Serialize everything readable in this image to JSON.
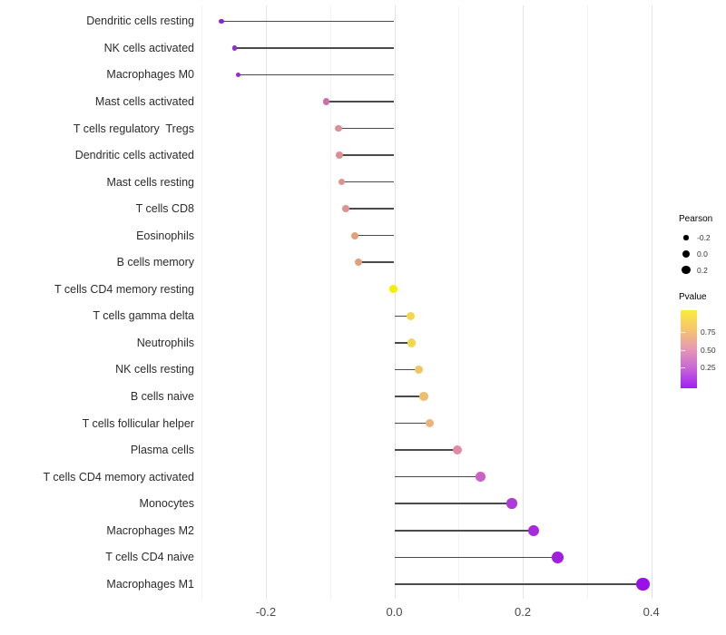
{
  "chart_data": {
    "type": "lollipop",
    "title": "",
    "xlabel": "",
    "ylabel": "",
    "grid": "on",
    "legend_position": "right",
    "xlim": [
      -0.31,
      0.43
    ],
    "x_tick_values": [
      -0.2,
      0.0,
      0.2,
      0.4
    ],
    "x_tick_labels": [
      "-0.2",
      "0.0",
      "0.2",
      "0.4"
    ],
    "x_major_grid": [
      -0.2,
      0.0,
      0.2,
      0.4
    ],
    "x_minor_grid": [
      -0.3,
      -0.1,
      0.1,
      0.3
    ],
    "categories": [
      "Dendritic cells resting",
      "NK cells activated",
      "Macrophages M0",
      "Mast cells activated",
      "T cells regulatory  Tregs",
      "Dendritic cells activated",
      "Mast cells resting",
      "T cells CD8",
      "Eosinophils",
      "B cells memory",
      "T cells CD4 memory resting",
      "T cells gamma delta",
      "Neutrophils",
      "NK cells resting",
      "B cells naive",
      "T cells follicular helper",
      "Plasma cells",
      "T cells CD4 memory activated",
      "Monocytes",
      "Macrophages M2",
      "T cells CD4 naive",
      "Macrophages M1"
    ],
    "series": [
      {
        "name": "Pearson",
        "values": [
          -0.269,
          -0.249,
          -0.243,
          -0.106,
          -0.087,
          -0.085,
          -0.082,
          -0.075,
          -0.062,
          -0.056,
          -0.001,
          0.025,
          0.027,
          0.038,
          0.046,
          0.055,
          0.098,
          0.134,
          0.183,
          0.217,
          0.254,
          0.387
        ]
      }
    ],
    "point_colors": [
      "#8B24D5",
      "#9327DA",
      "#9529DB",
      "#CC70AC",
      "#DA9097",
      "#DB9095",
      "#DD9392",
      "#DD9490",
      "#E1A278",
      "#E1A07B",
      "#F4EF00",
      "#F5D74B",
      "#F4D64F",
      "#F0C566",
      "#EEBF70",
      "#ECB37A",
      "#DF8AA7",
      "#CB63C6",
      "#AE3AD8",
      "#A72ADC",
      "#A21FE2",
      "#9B10E8"
    ],
    "stem_color": "#4a4a4a"
  },
  "legend": {
    "pearson": {
      "title": "Pearson",
      "dot_color": "#000000",
      "items": [
        {
          "label": "-0.2",
          "radius": 2.6
        },
        {
          "label": "0.0",
          "radius": 4.0
        },
        {
          "label": "0.2",
          "radius": 4.9
        }
      ]
    },
    "pvalue": {
      "title": "Pvalue",
      "tick_labels": [
        "0.75",
        "0.50",
        "0.25"
      ],
      "gradient_top_to_bottom": [
        "#FBEC3B",
        "#F6C46E",
        "#E698B4",
        "#C765D8",
        "#A21EF5"
      ]
    }
  }
}
